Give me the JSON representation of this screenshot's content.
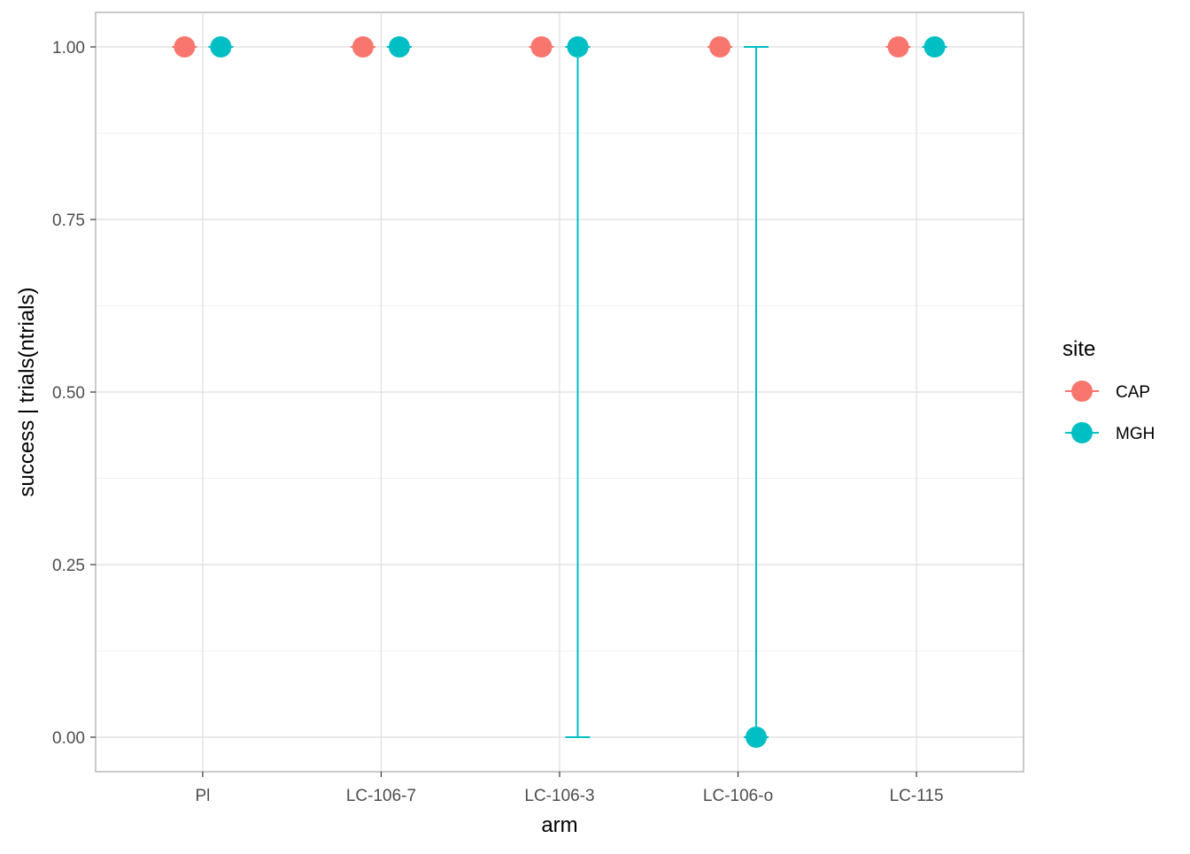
{
  "chart_data": {
    "type": "scatter",
    "xlabel": "arm",
    "ylabel": "success | trials(ntrials)",
    "categories": [
      "Pl",
      "LC-106-7",
      "LC-106-3",
      "LC-106-o",
      "LC-115"
    ],
    "ylim": [
      -0.05,
      1.05
    ],
    "y_ticks": [
      0.0,
      0.25,
      0.5,
      0.75,
      1.0
    ],
    "y_tick_labels": [
      "0.00",
      "0.25",
      "0.50",
      "0.75",
      "1.00"
    ],
    "grid": true,
    "legend": {
      "title": "site",
      "placement": "right",
      "entries": [
        "CAP",
        "MGH"
      ]
    },
    "series": [
      {
        "name": "CAP",
        "color": "#F8766D",
        "points": [
          {
            "x": "Pl",
            "y": 1.0,
            "lower": 1.0,
            "upper": 1.0
          },
          {
            "x": "LC-106-7",
            "y": 1.0,
            "lower": 1.0,
            "upper": 1.0
          },
          {
            "x": "LC-106-3",
            "y": 1.0,
            "lower": 1.0,
            "upper": 1.0
          },
          {
            "x": "LC-106-o",
            "y": 1.0,
            "lower": 1.0,
            "upper": 1.0
          },
          {
            "x": "LC-115",
            "y": 1.0,
            "lower": 1.0,
            "upper": 1.0
          }
        ]
      },
      {
        "name": "MGH",
        "color": "#00BFC4",
        "points": [
          {
            "x": "Pl",
            "y": 1.0,
            "lower": 1.0,
            "upper": 1.0
          },
          {
            "x": "LC-106-7",
            "y": 1.0,
            "lower": 1.0,
            "upper": 1.0
          },
          {
            "x": "LC-106-3",
            "y": 1.0,
            "lower": 0.0,
            "upper": 1.0
          },
          {
            "x": "LC-106-o",
            "y": 0.0,
            "lower": 0.0,
            "upper": 1.0
          },
          {
            "x": "LC-115",
            "y": 1.0,
            "lower": 1.0,
            "upper": 1.0
          }
        ]
      }
    ]
  }
}
